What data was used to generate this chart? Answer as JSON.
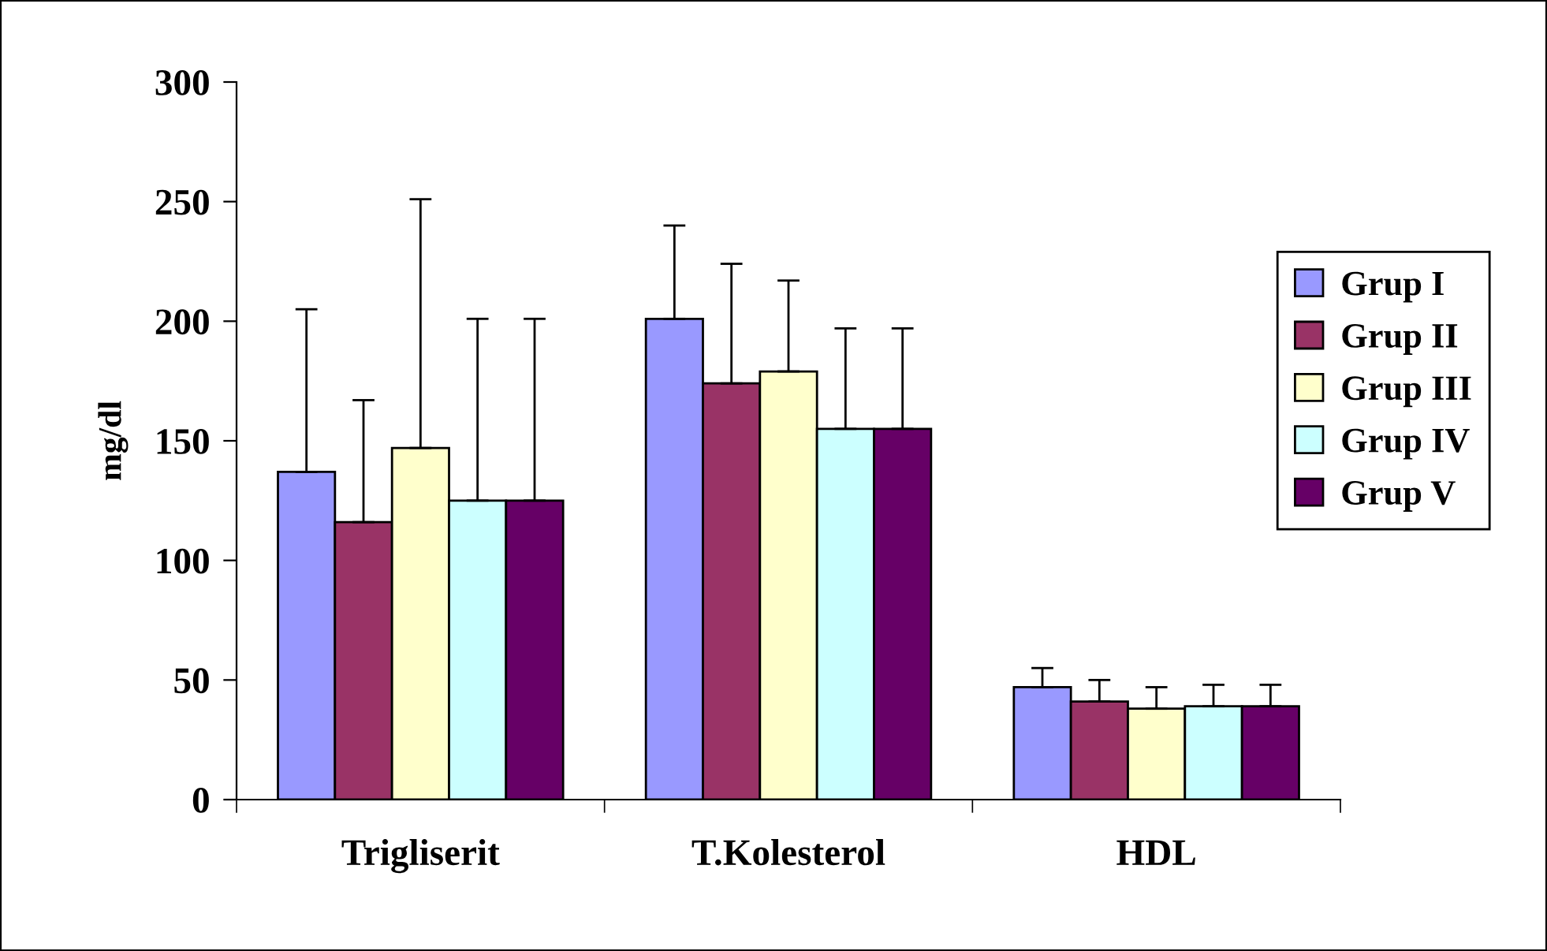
{
  "chart_data": {
    "type": "bar",
    "ylabel": "mg/dl",
    "categories": [
      "Trigliserit",
      "T.Kolesterol",
      "HDL"
    ],
    "series": [
      {
        "name": "Grup I",
        "color": "#9999ff",
        "values": [
          137,
          201,
          47
        ],
        "errors": [
          [
            137,
            205
          ],
          [
            201,
            240
          ],
          [
            47,
            55
          ]
        ]
      },
      {
        "name": "Grup II",
        "color": "#993366",
        "values": [
          116,
          174,
          41
        ],
        "errors": [
          [
            116,
            167
          ],
          [
            174,
            224
          ],
          [
            41,
            50
          ]
        ]
      },
      {
        "name": "Grup III",
        "color": "#ffffcc",
        "values": [
          147,
          179,
          38
        ],
        "errors": [
          [
            147,
            251
          ],
          [
            179,
            217
          ],
          [
            38,
            47
          ]
        ]
      },
      {
        "name": "Grup IV",
        "color": "#ccffff",
        "values": [
          125,
          155,
          39
        ],
        "errors": [
          [
            125,
            201
          ],
          [
            155,
            197
          ],
          [
            39,
            48
          ]
        ]
      },
      {
        "name": "Grup V",
        "color": "#660066",
        "values": [
          125,
          155,
          39
        ],
        "errors": [
          [
            125,
            201
          ],
          [
            155,
            197
          ],
          [
            39,
            48
          ]
        ]
      }
    ],
    "ylim": [
      0,
      300
    ],
    "yticks": [
      0,
      50,
      100,
      150,
      200,
      250,
      300
    ],
    "grid": false,
    "legend": "right"
  }
}
